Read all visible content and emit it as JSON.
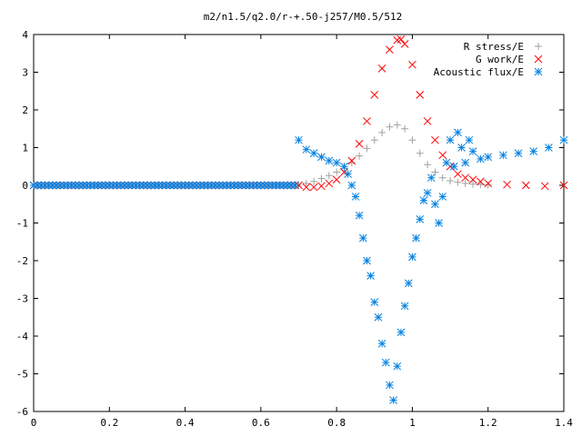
{
  "chart_data": {
    "type": "scatter",
    "title": "m2/n1.5/q2.0/r-+.50-j257/M0.5/512",
    "xlabel": "",
    "ylabel": "",
    "xlim": [
      0,
      1.4
    ],
    "ylim": [
      -6,
      4
    ],
    "x_ticks": [
      "0",
      "0.2",
      "0.4",
      "0.6",
      "0.8",
      "1",
      "1.2",
      "1.4"
    ],
    "y_ticks": [
      "4",
      "3",
      "2",
      "1",
      "0",
      "-1",
      "-2",
      "-3",
      "-4",
      "-5",
      "-6"
    ],
    "grid": false,
    "legend_position": "top-right",
    "series": [
      {
        "name": "R stress/E",
        "marker": "+",
        "color": "#a0a0a0",
        "x": [
          0.7,
          0.72,
          0.74,
          0.76,
          0.78,
          0.8,
          0.82,
          0.84,
          0.86,
          0.88,
          0.9,
          0.92,
          0.94,
          0.96,
          0.98,
          1.0,
          1.02,
          1.04,
          1.06,
          1.08,
          1.1,
          1.12,
          1.14,
          1.16,
          1.18,
          1.2
        ],
        "y": [
          0.0,
          0.05,
          0.1,
          0.18,
          0.26,
          0.35,
          0.45,
          0.6,
          0.78,
          0.98,
          1.2,
          1.4,
          1.55,
          1.6,
          1.5,
          1.2,
          0.85,
          0.55,
          0.35,
          0.2,
          0.12,
          0.08,
          0.05,
          0.03,
          0.02,
          0.01
        ]
      },
      {
        "name": "G work/E",
        "marker": "x",
        "color": "#ff0000",
        "x": [
          0.7,
          0.72,
          0.74,
          0.76,
          0.78,
          0.8,
          0.82,
          0.84,
          0.86,
          0.88,
          0.9,
          0.92,
          0.94,
          0.96,
          0.97,
          0.98,
          1.0,
          1.02,
          1.04,
          1.06,
          1.08,
          1.1,
          1.12,
          1.14,
          1.16,
          1.18,
          1.2,
          1.25,
          1.3,
          1.35,
          1.4
        ],
        "y": [
          0.0,
          -0.05,
          -0.05,
          -0.02,
          0.05,
          0.15,
          0.35,
          0.65,
          1.1,
          1.7,
          2.4,
          3.1,
          3.6,
          3.85,
          3.87,
          3.75,
          3.2,
          2.4,
          1.7,
          1.2,
          0.8,
          0.5,
          0.3,
          0.2,
          0.15,
          0.1,
          0.05,
          0.02,
          0.0,
          -0.02,
          0.0
        ]
      },
      {
        "name": "Acoustic flux/E",
        "marker": "*",
        "color": "#0080e0",
        "x": [
          0.7,
          0.72,
          0.74,
          0.76,
          0.78,
          0.8,
          0.82,
          0.83,
          0.84,
          0.85,
          0.86,
          0.87,
          0.88,
          0.89,
          0.9,
          0.91,
          0.92,
          0.93,
          0.94,
          0.95,
          0.96,
          0.97,
          0.98,
          0.99,
          1.0,
          1.01,
          1.02,
          1.03,
          1.04,
          1.05,
          1.06,
          1.07,
          1.08,
          1.09,
          1.1,
          1.11,
          1.12,
          1.13,
          1.14,
          1.15,
          1.16,
          1.18,
          1.2,
          1.24,
          1.28,
          1.32,
          1.36,
          1.4
        ],
        "y": [
          1.2,
          0.95,
          0.85,
          0.75,
          0.65,
          0.6,
          0.5,
          0.3,
          0.0,
          -0.3,
          -0.8,
          -1.4,
          -2.0,
          -2.4,
          -3.1,
          -3.5,
          -4.2,
          -4.7,
          -5.3,
          -5.7,
          -4.8,
          -3.9,
          -3.2,
          -2.6,
          -1.9,
          -1.4,
          -0.9,
          -0.4,
          -0.2,
          0.2,
          -0.5,
          -1.0,
          -0.3,
          0.6,
          1.2,
          0.5,
          1.4,
          1.0,
          0.6,
          1.2,
          0.9,
          0.7,
          0.75,
          0.8,
          0.85,
          0.9,
          1.0,
          1.2
        ]
      }
    ]
  }
}
